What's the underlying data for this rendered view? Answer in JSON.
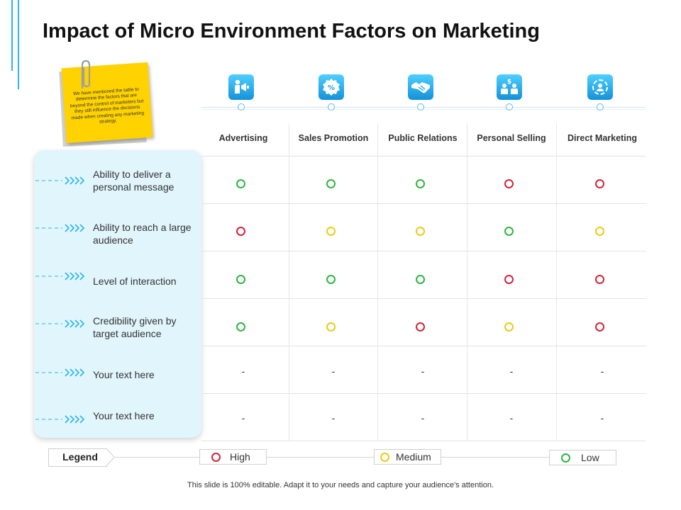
{
  "title": "Impact of Micro Environment Factors on Marketing",
  "note": {
    "text": "We have mentioned the table to determine the factors that are beyond the control of marketers but they still influence the decisions made when creating any marketing strategy."
  },
  "colors": {
    "high": "#d0263a",
    "medium": "#e8cc18",
    "low": "#2db640",
    "accent": "#29b6e8",
    "panel": "#e1f5fc"
  },
  "columns": [
    {
      "label": "Advertising",
      "icon": "advertising-icon"
    },
    {
      "label": "Sales Promotion",
      "icon": "sales-promotion-icon"
    },
    {
      "label": "Public Relations",
      "icon": "handshake-icon"
    },
    {
      "label": "Personal Selling",
      "icon": "personal-selling-icon"
    },
    {
      "label": "Direct Marketing",
      "icon": "direct-marketing-icon"
    }
  ],
  "rows": [
    {
      "label": "Ability to deliver a personal message",
      "ratings": [
        "low",
        "low",
        "low",
        "high",
        "high"
      ]
    },
    {
      "label": "Ability to reach a large audience",
      "ratings": [
        "high",
        "medium",
        "medium",
        "low",
        "medium"
      ]
    },
    {
      "label": "Level of interaction",
      "ratings": [
        "low",
        "low",
        "low",
        "high",
        "high"
      ]
    },
    {
      "label": "Credibility given by target audience",
      "ratings": [
        "low",
        "medium",
        "high",
        "medium",
        "high"
      ]
    },
    {
      "label": "Your text here",
      "ratings": [
        "-",
        "-",
        "-",
        "-",
        "-"
      ]
    },
    {
      "label": "Your text here",
      "ratings": [
        "-",
        "-",
        "-",
        "-",
        "-"
      ]
    }
  ],
  "legend": {
    "title": "Legend",
    "items": [
      {
        "key": "high",
        "label": "High"
      },
      {
        "key": "medium",
        "label": "Medium"
      },
      {
        "key": "low",
        "label": "Low"
      }
    ]
  },
  "footer": "This slide is 100% editable. Adapt it to your needs and capture your audience's attention."
}
